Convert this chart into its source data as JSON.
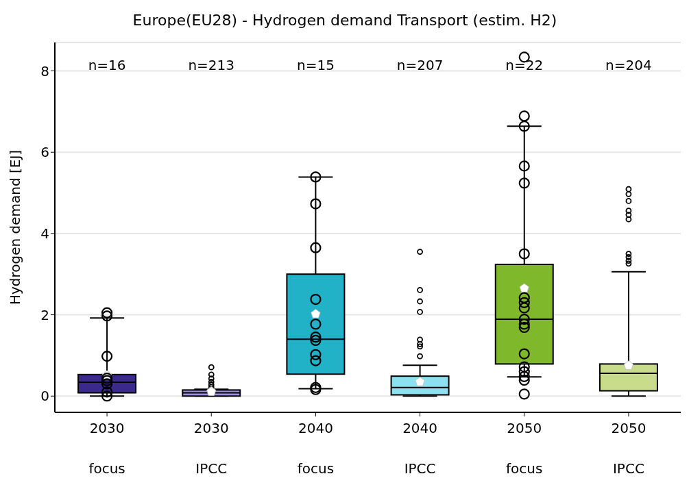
{
  "chart_data": {
    "type": "box",
    "title": "Europe(EU28) - Hydrogen demand Transport (estim. H2)",
    "ylabel": "Hydrogen demand [EJ]",
    "categories": [
      "2030\nfocus",
      "2030\nIPCC",
      "2040\nfocus",
      "2040\nIPCC",
      "2050\nfocus",
      "2050\nIPCC"
    ],
    "colors": [
      "#3b2a8c",
      "#9d90dc",
      "#22b2c8",
      "#8de0ef",
      "#7fb92b",
      "#c8dc8c"
    ],
    "boxes": [
      {
        "low": 0,
        "q1": 0.08,
        "median": 0.34,
        "q3": 0.53,
        "high": 1.92,
        "mean": 0.51
      },
      {
        "low": 0,
        "q1": 0,
        "median": 0.08,
        "q3": 0.15,
        "high": 0.17,
        "mean": 0.11,
        "outliers": [
          0.71,
          0.53,
          0.43,
          0.35,
          0.28,
          0.22
        ]
      },
      {
        "low": 0.18,
        "q1": 0.54,
        "median": 1.4,
        "q3": 3.0,
        "high": 5.39,
        "mean": 2.02
      },
      {
        "low": 0,
        "q1": 0.03,
        "median": 0.21,
        "q3": 0.49,
        "high": 0.76,
        "mean": 0.35,
        "outliers": [
          3.55,
          2.61,
          2.33,
          2.07,
          1.39,
          1.28,
          1.22,
          0.98
        ]
      },
      {
        "low": 0.47,
        "q1": 0.79,
        "median": 1.89,
        "q3": 3.24,
        "high": 6.64,
        "mean": 2.65
      },
      {
        "low": 0,
        "q1": 0.13,
        "median": 0.56,
        "q3": 0.79,
        "high": 3.06,
        "mean": 0.75,
        "outliers": [
          5.09,
          4.97,
          4.8,
          4.56,
          4.46,
          4.35,
          3.5,
          3.42,
          3.33,
          3.26
        ]
      }
    ],
    "series": [
      {
        "type": "scatter",
        "color": "#000000",
        "marker": "circle",
        "x": [
          "2030\nfocus",
          "2030\nfocus",
          "2030\nfocus",
          "2030\nfocus",
          "2030\nfocus",
          "2030\nfocus",
          "2030\nfocus",
          "2030\nfocus",
          "2030\nfocus",
          "2030\nfocus",
          "2040\nfocus",
          "2040\nfocus",
          "2040\nfocus",
          "2040\nfocus",
          "2040\nfocus",
          "2040\nfocus",
          "2040\nfocus",
          "2040\nfocus",
          "2040\nfocus",
          "2040\nfocus",
          "2040\nfocus",
          "2050\nfocus",
          "2050\nfocus",
          "2050\nfocus",
          "2050\nfocus",
          "2050\nfocus",
          "2050\nfocus",
          "2050\nfocus",
          "2050\nfocus",
          "2050\nfocus",
          "2050\nfocus",
          "2050\nfocus",
          "2050\nfocus",
          "2050\nfocus",
          "2050\nfocus",
          "2050\nfocus",
          "2050\nfocus",
          "2050\nfocus",
          "2050\nfocus"
        ],
        "values": [
          2.05,
          1.97,
          0.98,
          0.44,
          0.38,
          0.3,
          null,
          0.1,
          null,
          0,
          5.39,
          4.73,
          3.65,
          2.38,
          1.77,
          1.45,
          1.37,
          1.02,
          0.87,
          0.21,
          0.16,
          8.34,
          6.89,
          6.64,
          5.66,
          5.24,
          3.5,
          2.42,
          2.3,
          2.17,
          1.89,
          1.77,
          1.69,
          1.04,
          0.72,
          0.6,
          0.48,
          0.39,
          0.05
        ]
      }
    ],
    "annotations": [
      "n=16",
      "n=213",
      "n=15",
      "n=207",
      "n=22",
      "n=204"
    ],
    "ylim": [
      -0.4,
      8.7
    ],
    "yticks": [
      0,
      2,
      4,
      6,
      8
    ],
    "grid": "y"
  }
}
